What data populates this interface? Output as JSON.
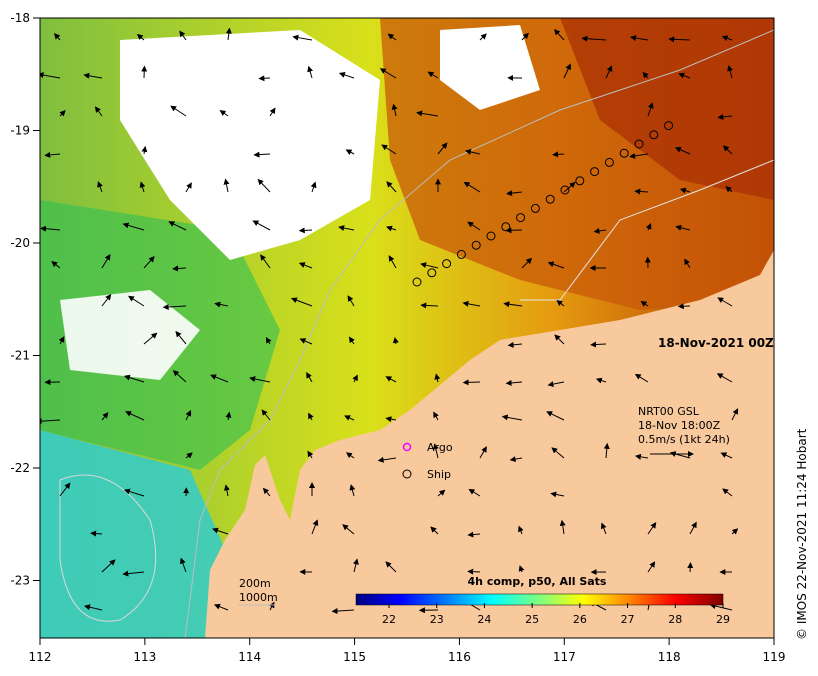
{
  "map": {
    "lon_ticks": [
      "112",
      "113",
      "114",
      "115",
      "116",
      "117",
      "118",
      "119"
    ],
    "lat_ticks": [
      "-18",
      "-19",
      "-20",
      "-21",
      "-22",
      "-23"
    ],
    "date_label": "18-Nov-2021 00Z",
    "credit": "© IMOS 22-Nov-2021 11:24 Hobart"
  },
  "currents": {
    "line1": "NRT00 GSL",
    "line2": "18-Nov 18:00Z",
    "line3": "0.5m/s (1kt 24h)"
  },
  "legend": {
    "argo": "Argo",
    "ship": "Ship",
    "argo_color": "#ff00ff",
    "ship_color": "#000000"
  },
  "bathymetry": {
    "line1": "200m",
    "line2": "1000m"
  },
  "colorbar": {
    "title": "4h comp, p50, All Sats",
    "ticks": [
      "22",
      "23",
      "24",
      "25",
      "26",
      "27",
      "28",
      "29"
    ],
    "range": [
      21.5,
      29
    ],
    "colors": [
      "#00007f",
      "#0000ff",
      "#0080ff",
      "#00ffff",
      "#80ff80",
      "#ffff00",
      "#ff8000",
      "#ff0000",
      "#7f0000"
    ]
  },
  "colors": {
    "land": "#f9c99e",
    "cloud": "#ffffff"
  }
}
